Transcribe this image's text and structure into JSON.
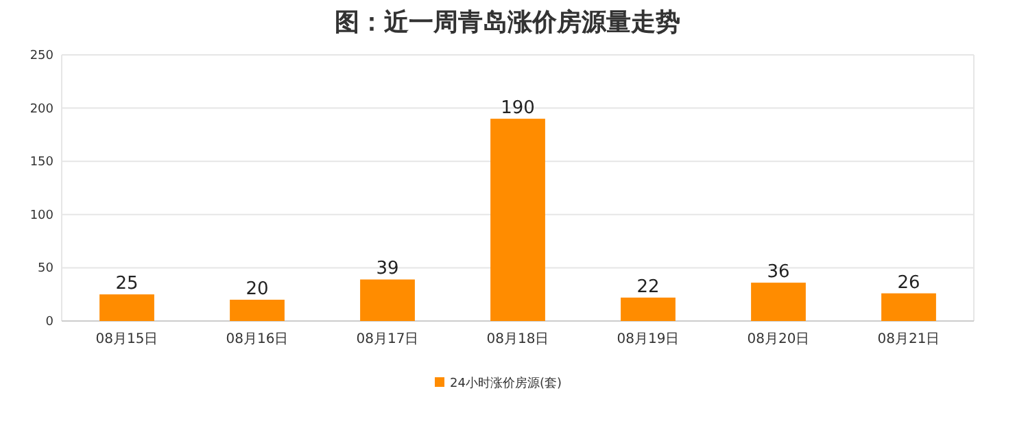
{
  "chart_data": {
    "type": "bar",
    "title": "图：近一周青岛涨价房源量走势",
    "categories": [
      "08月15日",
      "08月16日",
      "08月17日",
      "08月18日",
      "08月19日",
      "08月20日",
      "08月21日"
    ],
    "series": [
      {
        "name": "24小时涨价房源(套)",
        "color": "#ff8c00",
        "values": [
          25,
          20,
          39,
          190,
          22,
          36,
          26
        ]
      }
    ],
    "ylim": [
      0,
      250
    ],
    "yticks": [
      0,
      50,
      100,
      150,
      200,
      250
    ],
    "grid": "y",
    "legend": "bottom",
    "data_labels": true
  }
}
